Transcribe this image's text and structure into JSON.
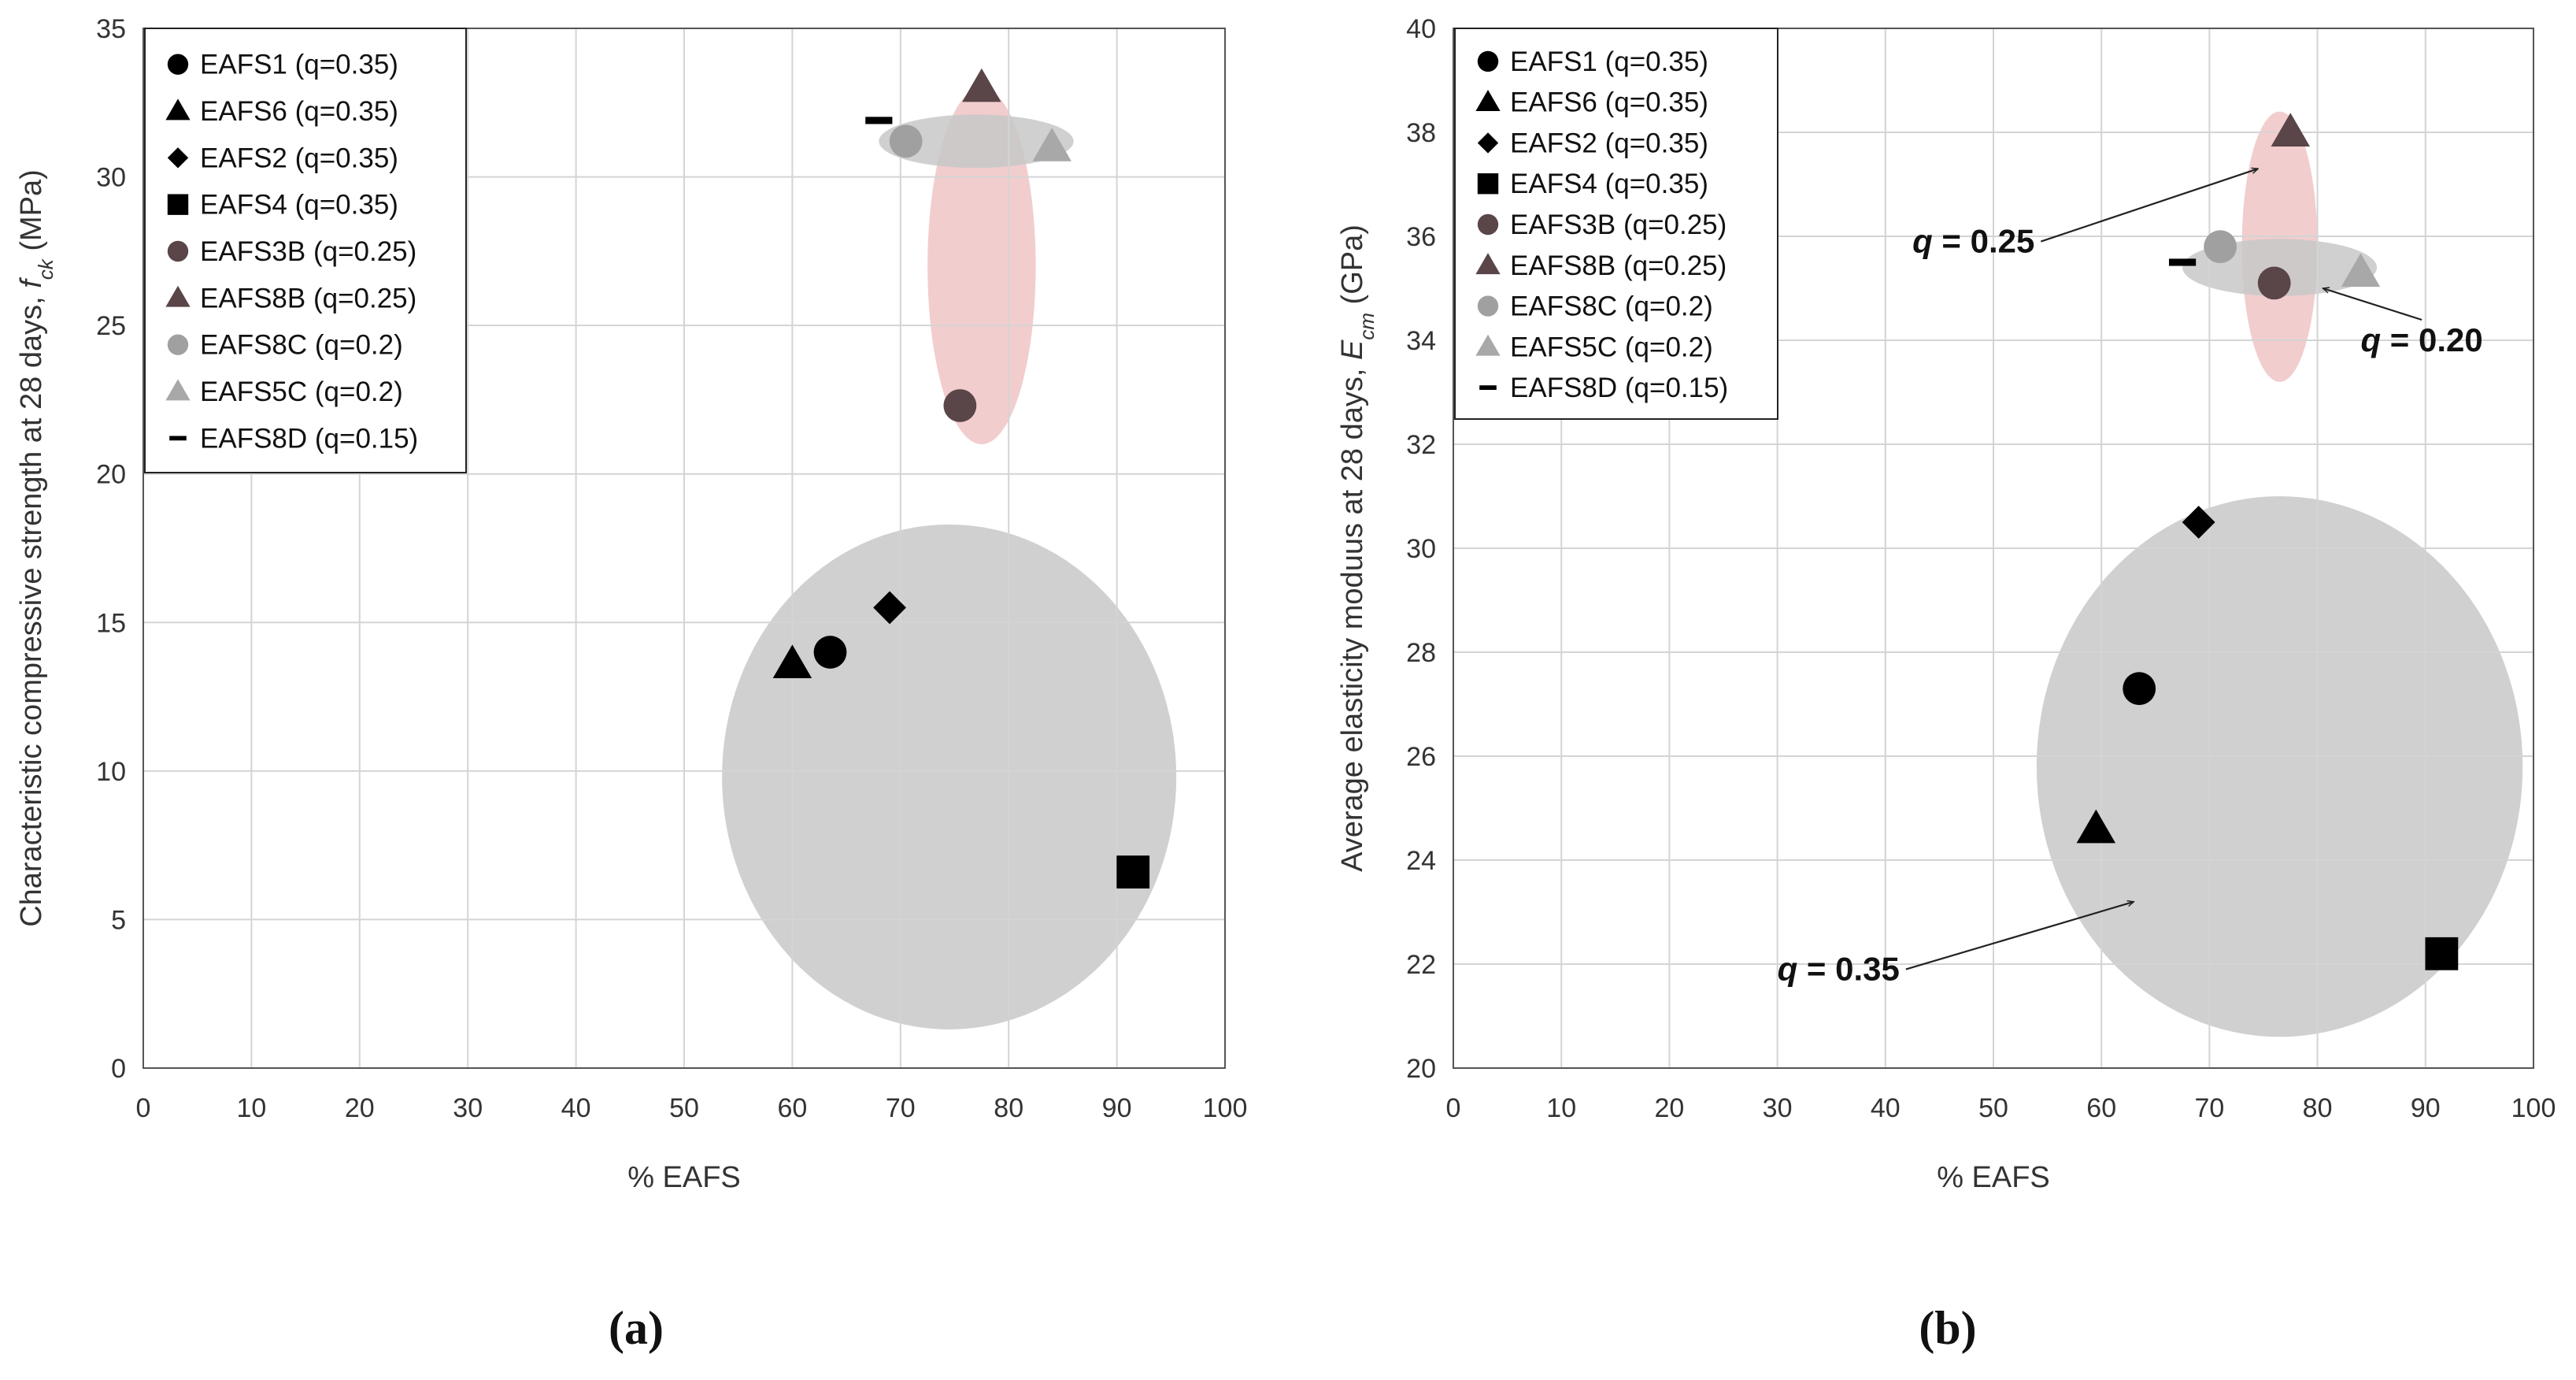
{
  "chart_data": [
    {
      "type": "scatter",
      "panel_label": "(a)",
      "xlabel": "% EAFS",
      "ylabel_main": "Characteristic compressive strength at 28 days, ",
      "ylabel_var": "f",
      "ylabel_sub": "ck",
      "ylabel_unit": " (MPa)",
      "xlim": [
        0,
        100
      ],
      "ylim": [
        0,
        35
      ],
      "xticks": [
        0,
        10,
        20,
        30,
        40,
        50,
        60,
        70,
        80,
        90,
        100
      ],
      "yticks": [
        0,
        5,
        10,
        15,
        20,
        25,
        30,
        35
      ],
      "grid": true,
      "legend_position": "top-left",
      "series": [
        {
          "name": "EAFS1 (q=0.35)",
          "marker": "circle",
          "color": "#000000",
          "x": 63.5,
          "y": 14.0
        },
        {
          "name": "EAFS6 (q=0.35)",
          "marker": "triangle",
          "color": "#000000",
          "x": 60.0,
          "y": 13.6
        },
        {
          "name": "EAFS2 (q=0.35)",
          "marker": "diamond",
          "color": "#000000",
          "x": 69.0,
          "y": 15.5
        },
        {
          "name": "EAFS4 (q=0.35)",
          "marker": "square",
          "color": "#000000",
          "x": 91.5,
          "y": 6.6
        },
        {
          "name": "EAFS3B (q=0.25)",
          "marker": "circle",
          "color": "#5a4548",
          "x": 75.5,
          "y": 22.3
        },
        {
          "name": "EAFS8B (q=0.25)",
          "marker": "triangle",
          "color": "#5a4548",
          "x": 77.5,
          "y": 33.0
        },
        {
          "name": "EAFS8C (q=0.2)",
          "marker": "circle",
          "color": "#a0a0a0",
          "x": 70.5,
          "y": 31.2
        },
        {
          "name": "EAFS5C (q=0.2)",
          "marker": "triangle",
          "color": "#a8a8a8",
          "x": 84.0,
          "y": 31.0
        },
        {
          "name": "EAFS8D (q=0.15)",
          "marker": "dash",
          "color": "#000000",
          "x": 68.0,
          "y": 31.9
        }
      ],
      "shaded_regions": [
        {
          "group": "q=0.35",
          "color": "#c8c8c8",
          "cx": 74.5,
          "cy": 9.8,
          "rx": 21.0,
          "ry": 8.5
        },
        {
          "group": "q=0.25",
          "color": "#f0c4c6",
          "cx": 77.5,
          "cy": 27.0,
          "rx": 5.0,
          "ry": 6.0
        },
        {
          "group": "q=0.2",
          "color": "#c8c8c8",
          "cx": 77.0,
          "cy": 31.2,
          "rx": 9.0,
          "ry": 0.9
        }
      ],
      "annotations": []
    },
    {
      "type": "scatter",
      "panel_label": "(b)",
      "xlabel": "% EAFS",
      "ylabel_main": "Average elasticity moduus at 28 days, ",
      "ylabel_var": "E",
      "ylabel_sub": "cm",
      "ylabel_unit": "  (GPa)",
      "xlim": [
        0,
        100
      ],
      "ylim": [
        20,
        40
      ],
      "xticks": [
        0,
        10,
        20,
        30,
        40,
        50,
        60,
        70,
        80,
        90,
        100
      ],
      "yticks": [
        20,
        22,
        24,
        26,
        28,
        30,
        32,
        34,
        36,
        38,
        40
      ],
      "grid": true,
      "legend_position": "top-left",
      "series": [
        {
          "name": "EAFS1 (q=0.35)",
          "marker": "circle",
          "color": "#000000",
          "x": 63.5,
          "y": 27.3
        },
        {
          "name": "EAFS6 (q=0.35)",
          "marker": "triangle",
          "color": "#000000",
          "x": 59.5,
          "y": 24.6
        },
        {
          "name": "EAFS2 (q=0.35)",
          "marker": "diamond",
          "color": "#000000",
          "x": 69.0,
          "y": 30.5
        },
        {
          "name": "EAFS4 (q=0.35)",
          "marker": "square",
          "color": "#000000",
          "x": 91.5,
          "y": 22.2
        },
        {
          "name": "EAFS3B (q=0.25)",
          "marker": "circle",
          "color": "#5a4548",
          "x": 76.0,
          "y": 35.1
        },
        {
          "name": "EAFS8B (q=0.25)",
          "marker": "triangle",
          "color": "#5a4548",
          "x": 77.5,
          "y": 38.0
        },
        {
          "name": "EAFS8C (q=0.2)",
          "marker": "circle",
          "color": "#a0a0a0",
          "x": 71.0,
          "y": 35.8
        },
        {
          "name": "EAFS5C (q=0.2)",
          "marker": "triangle",
          "color": "#a8a8a8",
          "x": 84.0,
          "y": 35.3
        },
        {
          "name": "EAFS8D (q=0.15)",
          "marker": "dash",
          "color": "#000000",
          "x": 67.5,
          "y": 35.5
        }
      ],
      "shaded_regions": [
        {
          "group": "q=0.35",
          "color": "#c8c8c8",
          "cx": 76.5,
          "cy": 25.8,
          "rx": 22.5,
          "ry": 5.2
        },
        {
          "group": "q=0.25",
          "color": "#f0c4c6",
          "cx": 76.5,
          "cy": 35.8,
          "rx": 3.5,
          "ry": 2.6
        },
        {
          "group": "q=0.2",
          "color": "#c8c8c8",
          "cx": 76.5,
          "cy": 35.4,
          "rx": 9.0,
          "ry": 0.55
        }
      ],
      "annotations": [
        {
          "q_label": "q",
          "value_label": " = 0.35",
          "x": 30.0,
          "y": 21.9,
          "arrow_to": [
            63.0,
            23.2
          ]
        },
        {
          "q_label": "q",
          "value_label": " = 0.25",
          "x": 42.5,
          "y": 35.9,
          "arrow_to": [
            74.5,
            37.3
          ]
        },
        {
          "q_label": "q",
          "value_label": " = 0.20",
          "x": 84.0,
          "y": 34.0,
          "arrow_to": [
            80.5,
            35.0
          ]
        }
      ]
    }
  ]
}
